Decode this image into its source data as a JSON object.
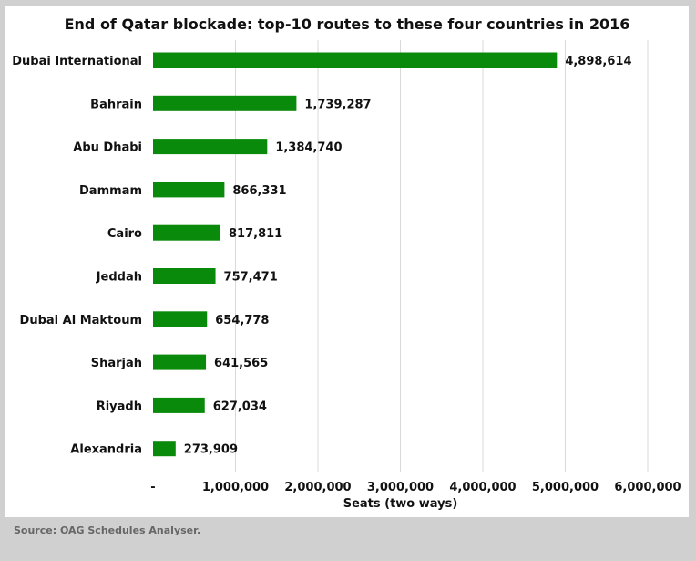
{
  "chart_data": {
    "type": "bar",
    "orientation": "horizontal",
    "title": "End of Qatar blockade: top-10 routes to these four countries in 2016",
    "xlabel": "Seats (two ways)",
    "ylabel": "",
    "categories": [
      "Dubai International",
      "Bahrain",
      "Abu Dhabi",
      "Dammam",
      "Cairo",
      "Jeddah",
      "Dubai Al Maktoum",
      "Sharjah",
      "Riyadh",
      "Alexandria"
    ],
    "values": [
      4898614,
      1739287,
      1384740,
      866331,
      817811,
      757471,
      654778,
      641565,
      627034,
      273909
    ],
    "value_labels": [
      "4,898,614",
      "1,739,287",
      "1,384,740",
      "866,331",
      "817,811",
      "757,471",
      "654,778",
      "641,565",
      "627,034",
      "273,909"
    ],
    "xlim": [
      0,
      6000000
    ],
    "xticks": [
      0,
      1000000,
      2000000,
      3000000,
      4000000,
      5000000,
      6000000
    ],
    "xtick_labels": [
      "-",
      "1,000,000",
      "2,000,000",
      "3,000,000",
      "4,000,000",
      "5,000,000",
      "6,000,000"
    ],
    "bar_color": "#0a8a0a",
    "grid": "vertical",
    "legend": "none"
  },
  "source": "Source: OAG Schedules Analyser."
}
